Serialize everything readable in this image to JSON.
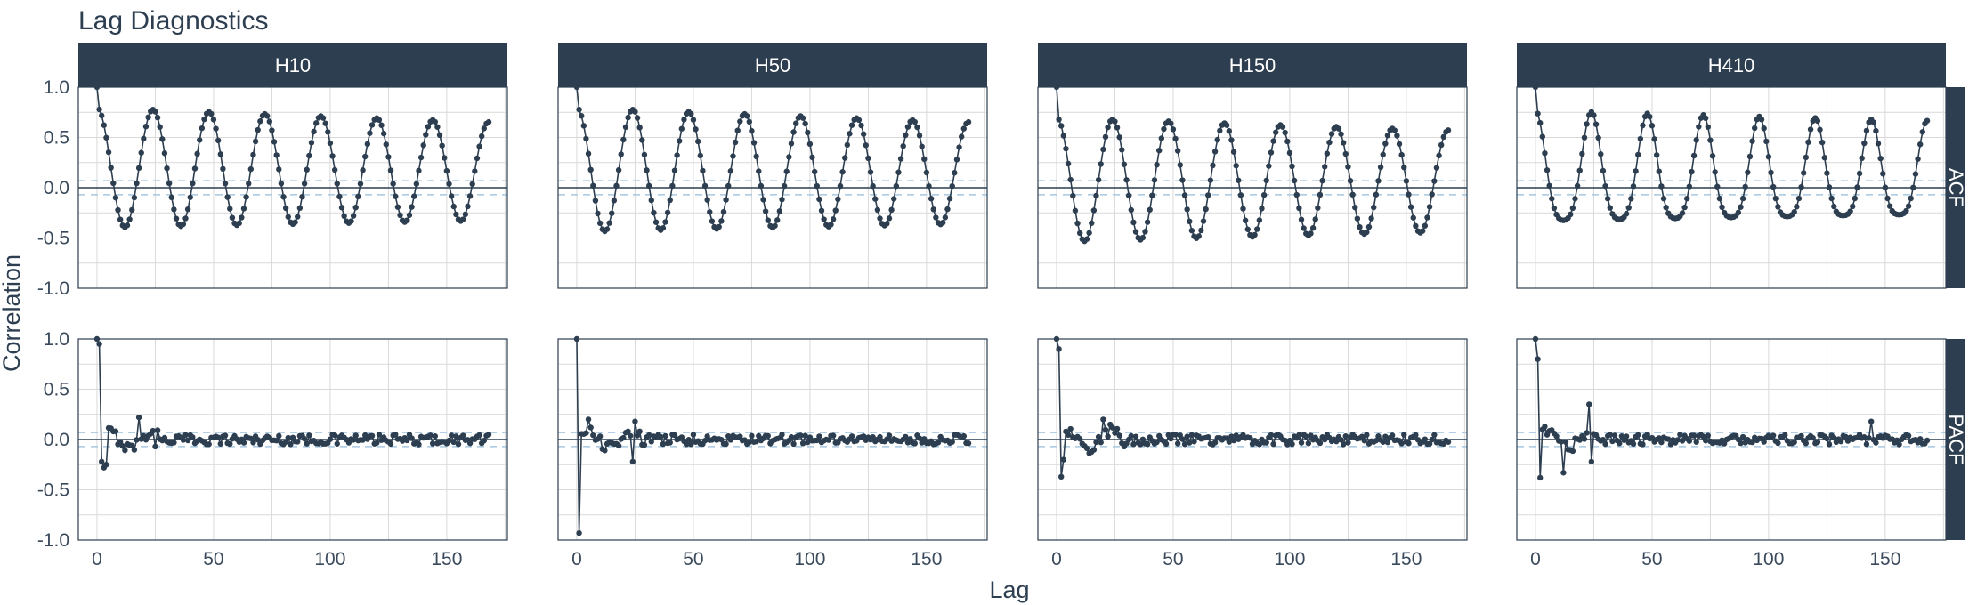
{
  "title": "Lag Diagnostics",
  "colors": {
    "strip": "#2c3e50",
    "series": "#2c3e50",
    "grid": "#d9d9d9",
    "panel_border": "#2c3e50",
    "confidence_band": "#a6c8e0"
  },
  "chart_data": {
    "type": "line",
    "facet_columns": [
      "H10",
      "H50",
      "H150",
      "H410"
    ],
    "facet_rows": [
      "ACF",
      "PACF"
    ],
    "xlabel": "Lag",
    "ylabel": "Correlation",
    "x_ticks": [
      "0",
      "50",
      "100",
      "150"
    ],
    "y_ticks": [
      "1.0",
      "0.5",
      "0.0",
      "-0.5",
      "-1.0"
    ],
    "xlim": [
      -8,
      176
    ],
    "ylim": [
      -1.0,
      1.0
    ],
    "lags": [
      0,
      168
    ],
    "confidence_band": 0.07,
    "grid": true,
    "acf": {
      "H10": {
        "period": 24,
        "amplitude": 0.6,
        "offset": 0.2,
        "decay": 0.0012,
        "points": 169
      },
      "H50": {
        "period": 24,
        "amplitude": 0.62,
        "offset": 0.18,
        "decay": 0.0012,
        "points": 169
      },
      "H150": {
        "period": 24,
        "amplitude": 0.62,
        "offset": 0.08,
        "decay": 0.0012,
        "points": 169
      },
      "H410": {
        "period": 24,
        "amplitude": 0.55,
        "offset": 0.12,
        "decay": 0.001,
        "points": 169
      }
    },
    "pacf_key_values": {
      "H10": [
        [
          0,
          1.0
        ],
        [
          1,
          0.95
        ],
        [
          2,
          -0.22
        ],
        [
          3,
          -0.28
        ],
        [
          4,
          -0.25
        ],
        [
          18,
          0.22
        ],
        [
          25,
          -0.07
        ]
      ],
      "H50": [
        [
          0,
          1.0
        ],
        [
          1,
          -0.93
        ],
        [
          5,
          0.2
        ],
        [
          24,
          -0.22
        ],
        [
          25,
          0.18
        ]
      ],
      "H150": [
        [
          0,
          1.0
        ],
        [
          1,
          0.9
        ],
        [
          2,
          -0.37
        ],
        [
          3,
          -0.2
        ],
        [
          20,
          0.2
        ],
        [
          23,
          0.15
        ]
      ],
      "H410": [
        [
          0,
          1.0
        ],
        [
          1,
          0.8
        ],
        [
          2,
          -0.38
        ],
        [
          12,
          -0.33
        ],
        [
          23,
          0.35
        ],
        [
          24,
          -0.22
        ],
        [
          144,
          0.18
        ]
      ]
    }
  }
}
